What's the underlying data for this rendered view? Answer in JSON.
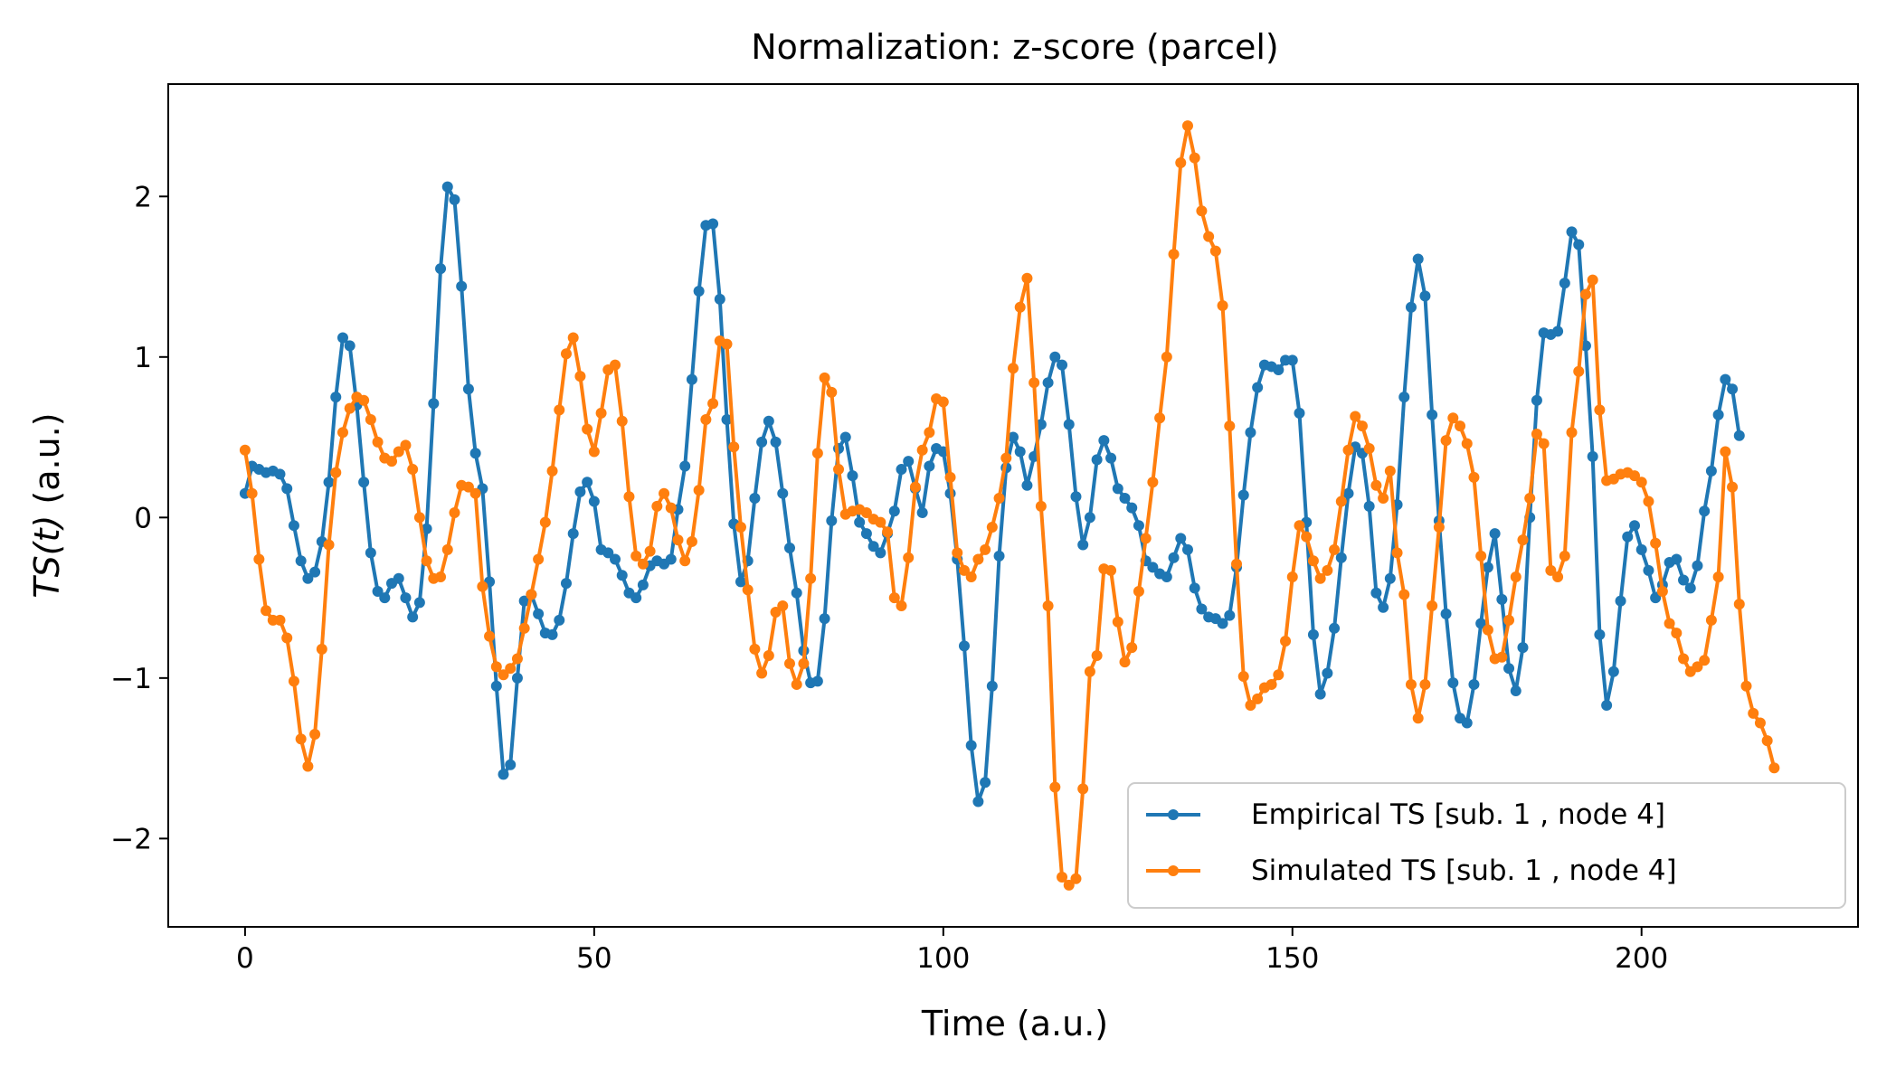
{
  "chart_data": {
    "type": "line",
    "title": "Normalization: z-score (parcel)",
    "xlabel": "Time (a.u.)",
    "ylabel_italic": "TS(t)",
    "ylabel_rest": " (a.u.)",
    "xlim": [
      -11,
      231
    ],
    "ylim": [
      -2.55,
      2.7
    ],
    "xticks": [
      0,
      50,
      100,
      150,
      200
    ],
    "yticks": [
      -2,
      -1,
      0,
      1,
      2
    ],
    "ytick_labels": [
      "−2",
      "−1",
      "0",
      "1",
      "2"
    ],
    "grid": false,
    "legend_position": "lower-right",
    "series": [
      {
        "name": "Empirical TS [sub. 1 , node 4]",
        "color": "#1f77b4",
        "values": [
          0.15,
          0.32,
          0.3,
          0.28,
          0.29,
          0.27,
          0.18,
          -0.05,
          -0.27,
          -0.38,
          -0.34,
          -0.15,
          0.22,
          0.75,
          1.12,
          1.07,
          0.7,
          0.22,
          -0.22,
          -0.46,
          -0.5,
          -0.41,
          -0.38,
          -0.5,
          -0.62,
          -0.53,
          -0.07,
          0.71,
          1.55,
          2.06,
          1.98,
          1.44,
          0.8,
          0.4,
          0.18,
          -0.4,
          -1.05,
          -1.6,
          -1.54,
          -1.0,
          -0.52,
          -0.48,
          -0.6,
          -0.72,
          -0.73,
          -0.64,
          -0.41,
          -0.1,
          0.16,
          0.22,
          0.1,
          -0.2,
          -0.22,
          -0.26,
          -0.36,
          -0.47,
          -0.5,
          -0.42,
          -0.3,
          -0.27,
          -0.29,
          -0.26,
          0.05,
          0.32,
          0.86,
          1.41,
          1.82,
          1.83,
          1.36,
          0.61,
          -0.04,
          -0.4,
          -0.27,
          0.12,
          0.47,
          0.6,
          0.47,
          0.15,
          -0.19,
          -0.47,
          -0.83,
          -1.03,
          -1.02,
          -0.63,
          -0.02,
          0.43,
          0.5,
          0.26,
          -0.03,
          -0.1,
          -0.18,
          -0.22,
          -0.1,
          0.04,
          0.3,
          0.35,
          0.18,
          0.03,
          0.32,
          0.43,
          0.41,
          0.15,
          -0.26,
          -0.8,
          -1.42,
          -1.77,
          -1.65,
          -1.05,
          -0.24,
          0.31,
          0.5,
          0.41,
          0.2,
          0.38,
          0.58,
          0.84,
          1.0,
          0.95,
          0.58,
          0.13,
          -0.17,
          0.0,
          0.36,
          0.48,
          0.37,
          0.18,
          0.12,
          0.06,
          -0.05,
          -0.27,
          -0.31,
          -0.35,
          -0.37,
          -0.25,
          -0.13,
          -0.2,
          -0.44,
          -0.57,
          -0.62,
          -0.63,
          -0.66,
          -0.61,
          -0.31,
          0.14,
          0.53,
          0.81,
          0.95,
          0.94,
          0.92,
          0.98,
          0.98,
          0.65,
          -0.03,
          -0.73,
          -1.1,
          -0.97,
          -0.69,
          -0.25,
          0.15,
          0.44,
          0.4,
          0.07,
          -0.47,
          -0.56,
          -0.38,
          0.08,
          0.75,
          1.31,
          1.61,
          1.38,
          0.64,
          -0.02,
          -0.6,
          -1.03,
          -1.25,
          -1.28,
          -1.04,
          -0.66,
          -0.31,
          -0.1,
          -0.51,
          -0.94,
          -1.08,
          -0.81,
          0.0,
          0.73,
          1.15,
          1.14,
          1.16,
          1.46,
          1.78,
          1.7,
          1.07,
          0.38,
          -0.73,
          -1.17,
          -0.96,
          -0.52,
          -0.12,
          -0.05,
          -0.2,
          -0.33,
          -0.5,
          -0.42,
          -0.28,
          -0.26,
          -0.39,
          -0.44,
          -0.3,
          0.04,
          0.29,
          0.64,
          0.86,
          0.8,
          0.51
        ]
      },
      {
        "name": "Simulated TS [sub. 1 , node 4]",
        "color": "#ff7f0e",
        "values": [
          0.42,
          0.15,
          -0.26,
          -0.58,
          -0.64,
          -0.64,
          -0.75,
          -1.02,
          -1.38,
          -1.55,
          -1.35,
          -0.82,
          -0.17,
          0.28,
          0.53,
          0.68,
          0.75,
          0.73,
          0.61,
          0.47,
          0.37,
          0.35,
          0.41,
          0.45,
          0.3,
          0.0,
          -0.27,
          -0.38,
          -0.37,
          -0.2,
          0.03,
          0.2,
          0.19,
          0.15,
          -0.43,
          -0.74,
          -0.93,
          -0.98,
          -0.94,
          -0.88,
          -0.69,
          -0.48,
          -0.26,
          -0.03,
          0.29,
          0.67,
          1.02,
          1.12,
          0.88,
          0.55,
          0.41,
          0.65,
          0.92,
          0.95,
          0.6,
          0.13,
          -0.24,
          -0.29,
          -0.21,
          0.07,
          0.15,
          0.06,
          -0.14,
          -0.27,
          -0.15,
          0.17,
          0.61,
          0.71,
          1.1,
          1.08,
          0.44,
          -0.06,
          -0.45,
          -0.82,
          -0.97,
          -0.86,
          -0.59,
          -0.55,
          -0.91,
          -1.04,
          -0.91,
          -0.38,
          0.4,
          0.87,
          0.78,
          0.3,
          0.02,
          0.04,
          0.05,
          0.03,
          -0.01,
          -0.03,
          -0.09,
          -0.5,
          -0.55,
          -0.25,
          0.19,
          0.42,
          0.53,
          0.74,
          0.72,
          0.25,
          -0.22,
          -0.33,
          -0.37,
          -0.26,
          -0.2,
          -0.06,
          0.12,
          0.37,
          0.93,
          1.31,
          1.49,
          0.84,
          0.07,
          -0.55,
          -1.68,
          -2.24,
          -2.29,
          -2.25,
          -1.69,
          -0.96,
          -0.86,
          -0.32,
          -0.33,
          -0.65,
          -0.9,
          -0.81,
          -0.46,
          -0.13,
          0.22,
          0.62,
          1.0,
          1.64,
          2.21,
          2.44,
          2.24,
          1.91,
          1.75,
          1.66,
          1.32,
          0.57,
          -0.29,
          -0.99,
          -1.17,
          -1.13,
          -1.06,
          -1.04,
          -0.98,
          -0.77,
          -0.37,
          -0.05,
          -0.12,
          -0.27,
          -0.38,
          -0.33,
          -0.2,
          0.1,
          0.42,
          0.63,
          0.57,
          0.43,
          0.2,
          0.12,
          0.29,
          -0.22,
          -0.48,
          -1.04,
          -1.25,
          -1.04,
          -0.55,
          -0.06,
          0.48,
          0.62,
          0.57,
          0.46,
          0.25,
          -0.24,
          -0.7,
          -0.88,
          -0.87,
          -0.64,
          -0.37,
          -0.14,
          0.12,
          0.52,
          0.46,
          -0.33,
          -0.37,
          -0.24,
          0.53,
          0.91,
          1.39,
          1.48,
          0.67,
          0.23,
          0.24,
          0.27,
          0.28,
          0.26,
          0.22,
          0.1,
          -0.16,
          -0.46,
          -0.66,
          -0.72,
          -0.88,
          -0.96,
          -0.93,
          -0.89,
          -0.64,
          -0.37,
          0.41,
          0.19,
          -0.54,
          -1.05,
          -1.22,
          -1.28,
          -1.39,
          -1.56
        ]
      }
    ]
  }
}
